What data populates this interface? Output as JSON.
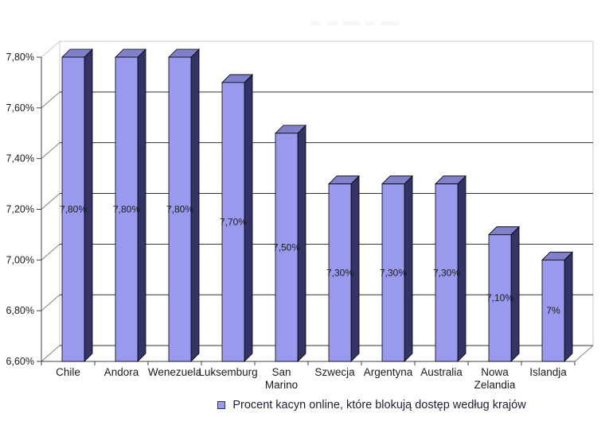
{
  "legend": {
    "label": "Procent kacyn online, które blokują dostęp według krajów"
  },
  "chart_data": {
    "type": "bar",
    "style": "3d-column",
    "categories": [
      "Chile",
      "Andora",
      "Wenezuela",
      "Luksemburg",
      "San Marino",
      "Szwecja",
      "Argentyna",
      "Australia",
      "Nowa Zelandia",
      "Islandja"
    ],
    "series": [
      {
        "name": "Procent kacyn online, które blokują dostęp według krajów",
        "values": [
          7.8,
          7.8,
          7.8,
          7.7,
          7.5,
          7.3,
          7.3,
          7.3,
          7.1,
          7.0
        ],
        "value_labels": [
          "7,80%",
          "7,80%",
          "7,80%",
          "7,70%",
          "7,50%",
          "7,30%",
          "7,30%",
          "7,30%",
          "7,10%",
          "7%"
        ]
      }
    ],
    "ylim": [
      6.6,
      7.8
    ],
    "y_ticks": [
      {
        "value": 7.8,
        "label": "7,80%"
      },
      {
        "value": 7.6,
        "label": "7,60%"
      },
      {
        "value": 7.4,
        "label": "7,40%"
      },
      {
        "value": 7.2,
        "label": "7,20%"
      },
      {
        "value": 7.0,
        "label": "7,00%"
      },
      {
        "value": 6.8,
        "label": "6,80%"
      },
      {
        "value": 6.6,
        "label": "6,60%"
      }
    ],
    "grid": true,
    "legend_position": "bottom",
    "colors": {
      "bar_front": "#9999ee",
      "bar_side": "#333366",
      "bar_top": "#8181cb",
      "bar_outline": "#000000",
      "gridline": "#333333",
      "frame": "#c8c8c8",
      "axis": "#404040",
      "tick_connector": "#808080",
      "text": "#1a1a1a"
    }
  }
}
